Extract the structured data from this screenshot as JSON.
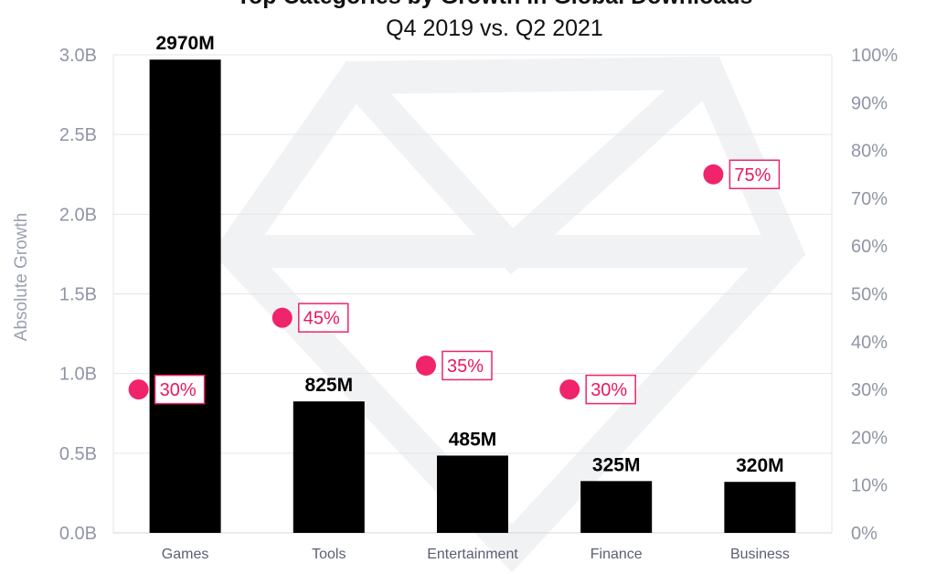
{
  "chart_data": {
    "type": "bar",
    "title": "Top Categories by Growth in Global Downloads",
    "subtitle": "Q4 2019 vs. Q2 2021",
    "ylabel": "Absolute Growth",
    "categories": [
      "Games",
      "Tools",
      "Entertainment",
      "Finance",
      "Business"
    ],
    "series": [
      {
        "type": "bar",
        "axis": "left",
        "values": [
          2.97,
          0.825,
          0.485,
          0.325,
          0.32
        ],
        "labels": [
          "2970M",
          "825M",
          "485M",
          "325M",
          "320M"
        ],
        "color": "#000000"
      },
      {
        "type": "scatter",
        "axis": "right",
        "values": [
          30,
          45,
          35,
          30,
          75
        ],
        "labels": [
          "30%",
          "45%",
          "35%",
          "30%",
          "75%"
        ],
        "color": "#f0246a"
      }
    ],
    "ylim": [
      0,
      3.0
    ],
    "yticks": [
      "0.0B",
      "0.5B",
      "1.0B",
      "1.5B",
      "2.0B",
      "2.5B",
      "3.0B"
    ],
    "y2lim": [
      0,
      100
    ],
    "y2ticks": [
      "0%",
      "10%",
      "20%",
      "30%",
      "40%",
      "50%",
      "60%",
      "70%",
      "80%",
      "90%",
      "100%"
    ],
    "grid": true,
    "legend": "none"
  }
}
